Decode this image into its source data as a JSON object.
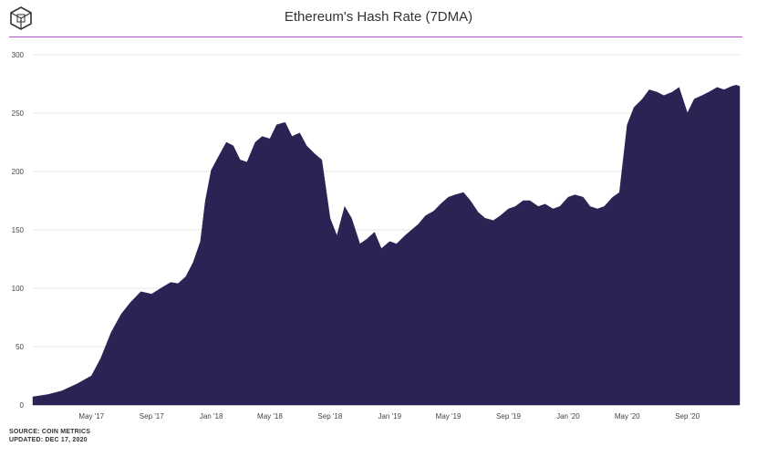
{
  "header": {
    "title": "Ethereum's Hash Rate (7DMA)",
    "logo": "theblock-cube-icon",
    "accent": "#b04fd1"
  },
  "footer": {
    "source": "SOURCE: COIN METRICS",
    "updated": "UPDATED: DEC 17, 2020"
  },
  "chart_data": {
    "type": "area",
    "color": "#2a2455",
    "ylim": [
      0,
      300
    ],
    "yticks": [
      0,
      50,
      100,
      150,
      200,
      250,
      300
    ],
    "xlim": [
      "2017-01-01",
      "2020-12-17"
    ],
    "xticks": [
      {
        "label": "May '17",
        "date": "2017-05-01"
      },
      {
        "label": "Sep '17",
        "date": "2017-09-01"
      },
      {
        "label": "Jan '18",
        "date": "2018-01-01"
      },
      {
        "label": "May '18",
        "date": "2018-05-01"
      },
      {
        "label": "Sep '18",
        "date": "2018-09-01"
      },
      {
        "label": "Jan '19",
        "date": "2019-01-01"
      },
      {
        "label": "May '19",
        "date": "2019-05-01"
      },
      {
        "label": "Sep '19",
        "date": "2019-09-01"
      },
      {
        "label": "Jan '20",
        "date": "2020-01-01"
      },
      {
        "label": "May '20",
        "date": "2020-05-01"
      },
      {
        "label": "Sep '20",
        "date": "2020-09-01"
      }
    ],
    "grid": true,
    "series": [
      {
        "x": [
          "2017-01-01",
          "2017-02-01",
          "2017-03-01",
          "2017-04-01",
          "2017-05-01",
          "2017-05-20",
          "2017-06-10",
          "2017-07-01",
          "2017-07-20",
          "2017-08-10",
          "2017-09-01",
          "2017-09-20",
          "2017-10-10",
          "2017-10-25",
          "2017-11-10",
          "2017-11-25",
          "2017-12-10",
          "2017-12-20",
          "2018-01-01",
          "2018-01-15",
          "2018-02-01",
          "2018-02-15",
          "2018-03-01",
          "2018-03-15",
          "2018-04-01",
          "2018-04-15",
          "2018-05-01",
          "2018-05-15",
          "2018-06-01",
          "2018-06-15",
          "2018-07-01",
          "2018-07-15",
          "2018-08-01",
          "2018-08-15",
          "2018-09-01",
          "2018-09-15",
          "2018-10-01",
          "2018-10-15",
          "2018-11-01",
          "2018-11-15",
          "2018-12-01",
          "2018-12-15",
          "2019-01-01",
          "2019-01-15",
          "2019-02-01",
          "2019-02-15",
          "2019-03-01",
          "2019-03-15",
          "2019-04-01",
          "2019-04-15",
          "2019-05-01",
          "2019-05-15",
          "2019-06-01",
          "2019-06-15",
          "2019-07-01",
          "2019-07-15",
          "2019-08-01",
          "2019-08-15",
          "2019-09-01",
          "2019-09-15",
          "2019-10-01",
          "2019-10-15",
          "2019-11-01",
          "2019-11-15",
          "2019-12-01",
          "2019-12-15",
          "2020-01-01",
          "2020-01-15",
          "2020-02-01",
          "2020-02-15",
          "2020-03-01",
          "2020-03-15",
          "2020-04-01",
          "2020-04-15",
          "2020-05-01",
          "2020-05-15",
          "2020-06-01",
          "2020-06-15",
          "2020-07-01",
          "2020-07-15",
          "2020-08-01",
          "2020-08-15",
          "2020-09-01",
          "2020-09-15",
          "2020-10-01",
          "2020-10-15",
          "2020-11-01",
          "2020-11-15",
          "2020-12-01",
          "2020-12-10",
          "2020-12-17"
        ],
        "y": [
          7,
          9,
          12,
          18,
          25,
          40,
          62,
          78,
          88,
          97,
          95,
          100,
          105,
          104,
          110,
          122,
          140,
          175,
          201,
          212,
          225,
          222,
          210,
          208,
          225,
          230,
          228,
          240,
          242,
          230,
          233,
          222,
          215,
          210,
          160,
          145,
          170,
          160,
          138,
          142,
          148,
          134,
          140,
          138,
          145,
          150,
          155,
          162,
          166,
          172,
          178,
          180,
          182,
          175,
          165,
          160,
          158,
          162,
          168,
          170,
          175,
          175,
          170,
          172,
          168,
          170,
          178,
          180,
          178,
          170,
          168,
          170,
          178,
          182,
          240,
          255,
          262,
          270,
          268,
          265,
          268,
          272,
          250,
          262,
          265,
          268,
          272,
          270,
          273,
          274,
          273
        ]
      }
    ]
  }
}
